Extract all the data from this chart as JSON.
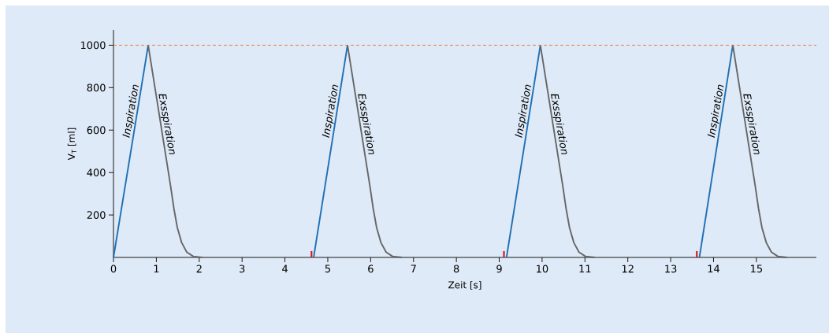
{
  "chart_data": {
    "type": "line",
    "xlabel": "Zeit [s]",
    "ylabel": "V$_{T}$ [ml]",
    "xlim": [
      0,
      16.4
    ],
    "ylim": [
      0,
      1072
    ],
    "xticks": [
      0,
      1,
      2,
      3,
      4,
      5,
      6,
      7,
      8,
      9,
      10,
      11,
      12,
      13,
      14,
      15
    ],
    "yticks": [
      200,
      400,
      600,
      800,
      1000
    ],
    "grid": false,
    "marker": "none",
    "line_style": "solid",
    "series": [
      {
        "color": "#1f6fb5",
        "x": [
          0,
          0.81
        ],
        "values": [
          0,
          1000
        ]
      },
      {
        "color": "#666666",
        "x": [
          0.81,
          1.33,
          1.41,
          1.49,
          1.59,
          1.71,
          1.86,
          2.08
        ],
        "values": [
          1000,
          340,
          230,
          140,
          70,
          25,
          5,
          0
        ]
      },
      {
        "color": "#1f6fb5",
        "x": [
          4.67,
          5.46
        ],
        "values": [
          0,
          1000
        ]
      },
      {
        "color": "#666666",
        "x": [
          5.46,
          5.98,
          6.06,
          6.14,
          6.24,
          6.36,
          6.51,
          6.73
        ],
        "values": [
          1000,
          340,
          230,
          140,
          70,
          25,
          5,
          0
        ]
      },
      {
        "color": "#1f6fb5",
        "x": [
          9.17,
          9.96
        ],
        "values": [
          0,
          1000
        ]
      },
      {
        "color": "#666666",
        "x": [
          9.96,
          10.48,
          10.56,
          10.64,
          10.74,
          10.86,
          11.01,
          11.23
        ],
        "values": [
          1000,
          340,
          230,
          140,
          70,
          25,
          5,
          0
        ]
      },
      {
        "color": "#1f6fb5",
        "x": [
          13.67,
          14.45
        ],
        "values": [
          0,
          1000
        ]
      },
      {
        "color": "#666666",
        "x": [
          14.45,
          14.97,
          15.05,
          15.13,
          15.23,
          15.35,
          15.5,
          15.72
        ],
        "values": [
          1000,
          340,
          230,
          140,
          70,
          25,
          5,
          0
        ]
      },
      {
        "type": "bar",
        "color": "#d7191c",
        "x": [
          4.62,
          9.11,
          13.61
        ],
        "values": [
          30,
          30,
          30
        ]
      }
    ],
    "ref_lines": [
      {
        "axis": "y",
        "value": 1000,
        "color": "#e8742c",
        "line_style": "dashed"
      }
    ],
    "annotations": [
      "Inspiration",
      "Exsspiration",
      "Inspiration",
      "Exsspiration",
      "Inspiration",
      "Exsspiration",
      "Inspiration",
      "Exsspiration"
    ]
  }
}
